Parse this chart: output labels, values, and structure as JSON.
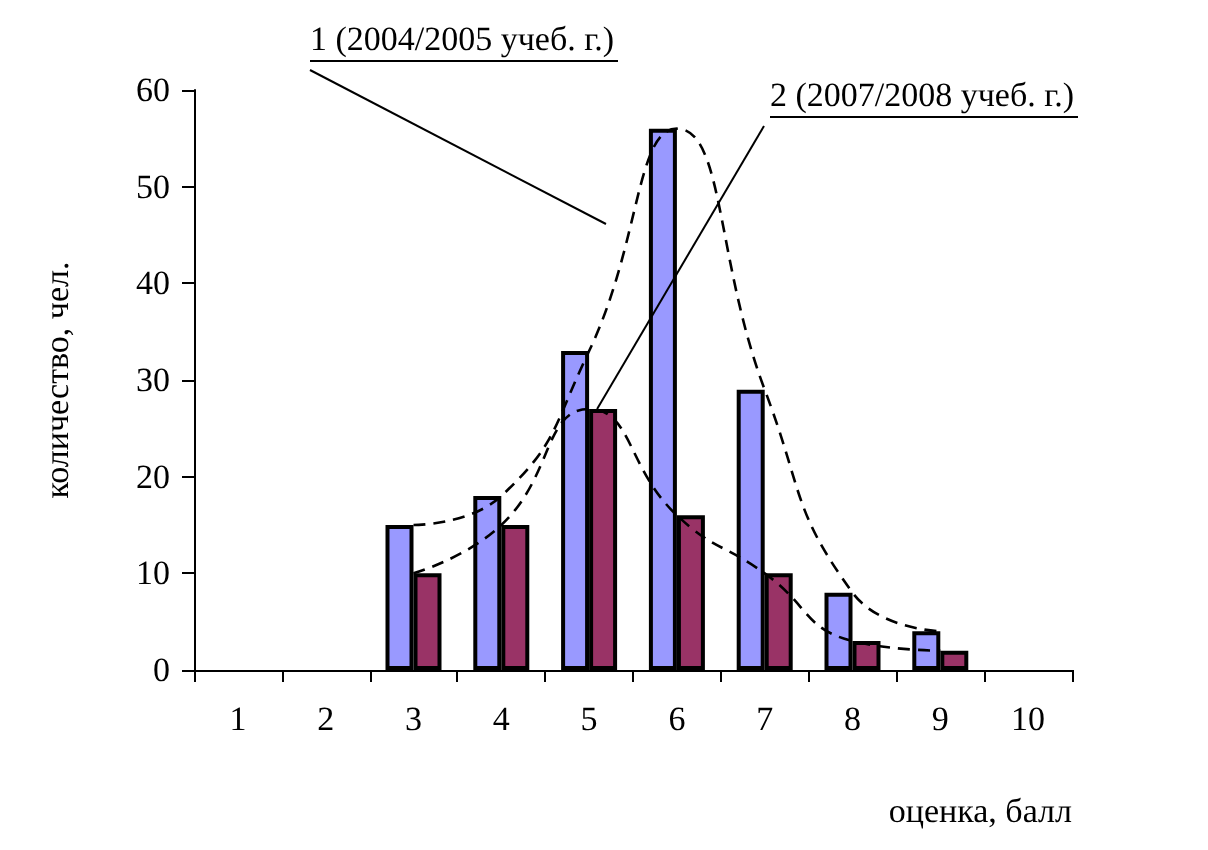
{
  "chart_data": {
    "type": "bar",
    "xlabel": "оценка, балл",
    "ylabel": "количество, чел.",
    "categories": [
      "1",
      "2",
      "3",
      "4",
      "5",
      "6",
      "7",
      "8",
      "9",
      "10"
    ],
    "series": [
      {
        "color": "#9999ff",
        "values": [
          null,
          null,
          15,
          18,
          33,
          56,
          29,
          8,
          4,
          null
        ]
      },
      {
        "color": "#993366",
        "values": [
          null,
          null,
          10,
          15,
          27,
          16,
          10,
          3,
          2,
          null
        ]
      },
      {
        "type": "line",
        "color": "#000000",
        "line_style": "dashed",
        "marker": "none",
        "values": [
          null,
          null,
          15,
          18,
          33,
          56,
          29,
          8,
          4,
          null
        ]
      },
      {
        "type": "line",
        "color": "#000000",
        "line_style": "dashed",
        "marker": "none",
        "values": [
          null,
          null,
          10,
          15,
          27,
          16,
          10,
          3,
          2,
          null
        ]
      }
    ],
    "annotations": [
      "1 (2004/2005 учеб. г.)",
      {
        "text": "2 (2007/2008 учеб. г.)",
        "x": "5",
        "y": 27
      }
    ],
    "ylim": [
      0,
      60
    ],
    "yticks": [
      0,
      10,
      20,
      30,
      40,
      50,
      60
    ],
    "grid": false
  }
}
